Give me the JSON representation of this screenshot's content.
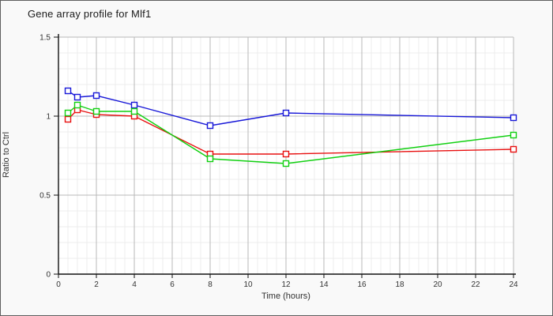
{
  "window": {
    "title": "Gene array profile for Mlf1"
  },
  "chart_data": {
    "type": "line",
    "title": "Gene array profile for Mlf1",
    "xlabel": "Time (hours)",
    "ylabel": "Ratio to Ctrl",
    "xlim": [
      0,
      24
    ],
    "ylim": [
      0,
      1.5
    ],
    "x_major_ticks": [
      0,
      2,
      4,
      6,
      8,
      10,
      12,
      14,
      16,
      18,
      20,
      22,
      24
    ],
    "x_tick_labels": [
      "0",
      "2",
      "4",
      "6",
      "8",
      "10",
      "12",
      "14",
      "16",
      "18",
      "20",
      "22",
      "24"
    ],
    "x_minor_step": 0.5,
    "y_major_ticks": [
      0,
      0.5,
      1,
      1.5
    ],
    "y_tick_labels": [
      "0",
      "0.5",
      "1",
      "1.5"
    ],
    "y_minor_step": 0.1,
    "grid": true,
    "legend": false,
    "marker": "open-square",
    "x": [
      0.5,
      1,
      2,
      4,
      8,
      12,
      24
    ],
    "series": [
      {
        "name": "series-blue",
        "color": "#1818d8",
        "values": [
          1.16,
          1.12,
          1.13,
          1.07,
          0.94,
          1.02,
          0.99
        ]
      },
      {
        "name": "series-red",
        "color": "#e81010",
        "values": [
          0.98,
          1.04,
          1.01,
          1.0,
          0.76,
          0.76,
          0.79
        ]
      },
      {
        "name": "series-green",
        "color": "#10d010",
        "values": [
          1.02,
          1.07,
          1.03,
          1.03,
          0.73,
          0.7,
          0.88
        ]
      }
    ]
  },
  "colors": {
    "background": "#f9f9f9",
    "plot_background": "#ffffff",
    "grid_minor": "#ececec",
    "grid_major": "#b8b8b8",
    "axis": "#111111",
    "frame_border": "#5f5f5f",
    "marker_fill": "#ffffff"
  }
}
